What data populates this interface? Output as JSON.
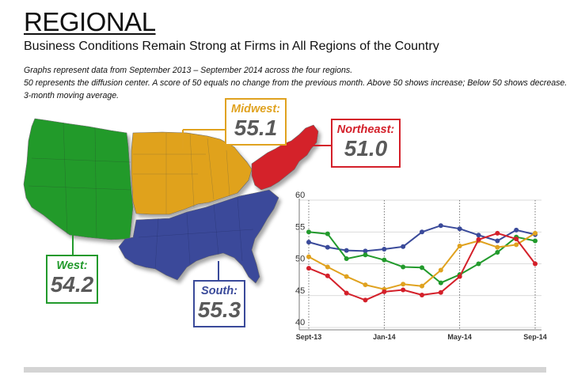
{
  "title": "REGIONAL",
  "subtitle": "Business Conditions Remain Strong at Firms in All Regions of the Country",
  "notes": [
    "Graphs represent data from September 2013 – September 2014 across the four regions.",
    "50 represents the diffusion center. A score of 50 equals no change from the previous month. Above 50 shows increase; Below 50 shows decrease.",
    "3-month moving average."
  ],
  "regions": {
    "midwest": {
      "label": "Midwest:",
      "value": "55.1",
      "color": "#e0a21f"
    },
    "northeast": {
      "label": "Northeast:",
      "value": "51.0",
      "color": "#d4202a"
    },
    "west": {
      "label": "West:",
      "value": "54.2",
      "color": "#229a2c"
    },
    "south": {
      "label": "South:",
      "value": "55.3",
      "color": "#3a4a9a"
    }
  },
  "chart_data": {
    "type": "line",
    "x": [
      "Sept-13",
      "Oct-13",
      "Nov-13",
      "Dec-13",
      "Jan-14",
      "Feb-14",
      "Mar-14",
      "Apr-14",
      "May-14",
      "Jun-14",
      "Jul-14",
      "Aug-14",
      "Sep-14"
    ],
    "xtick_labels": [
      "Sept-13",
      "Jan-14",
      "May-14",
      "Sep-14"
    ],
    "xtick_index": [
      0,
      4,
      8,
      12
    ],
    "ylim": [
      40,
      60
    ],
    "yticks": [
      40,
      45,
      50,
      55,
      60
    ],
    "grid": true,
    "series": [
      {
        "region": "south",
        "color": "#3a4a9a",
        "values": [
          53.4,
          52.6,
          52.1,
          52.0,
          52.3,
          52.7,
          55.0,
          56.0,
          55.5,
          54.5,
          53.6,
          55.3,
          54.6
        ]
      },
      {
        "region": "west",
        "color": "#229a2c",
        "values": [
          55.0,
          54.7,
          50.8,
          51.4,
          50.6,
          49.5,
          49.4,
          47.0,
          48.3,
          50.0,
          51.8,
          54.2,
          53.6
        ]
      },
      {
        "region": "midwest",
        "color": "#e0a21f",
        "values": [
          51.1,
          49.5,
          48.0,
          46.7,
          46.0,
          46.8,
          46.5,
          49.0,
          52.8,
          53.6,
          52.6,
          53.0,
          54.8
        ]
      },
      {
        "region": "northeast",
        "color": "#d4202a",
        "values": [
          49.3,
          48.1,
          45.4,
          44.3,
          45.6,
          45.9,
          45.1,
          45.5,
          48.0,
          53.8,
          54.8,
          53.9,
          50.0
        ]
      }
    ]
  }
}
